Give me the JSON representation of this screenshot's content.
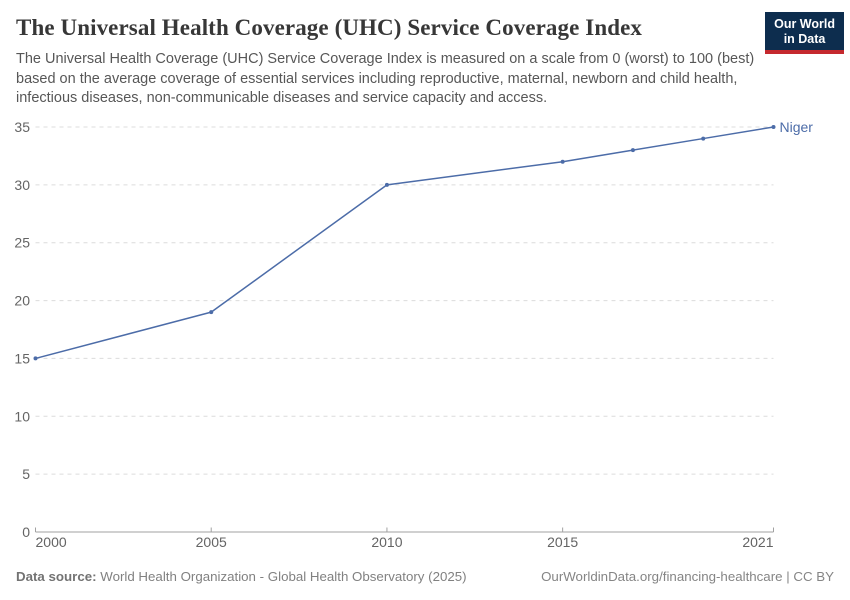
{
  "header": {
    "title": "The Universal Health Coverage (UHC) Service Coverage Index",
    "subtitle": "The Universal Health Coverage (UHC) Service Coverage Index is measured on a scale from 0 (worst) to 100 (best) based on the average coverage of essential services including reproductive, maternal, newborn and child health, infectious diseases, non-communicable diseases and service capacity and access.",
    "logo": {
      "line1": "Our World",
      "line2": "in Data",
      "bg_color": "#0d2d4e",
      "accent_color": "#c5292e"
    }
  },
  "chart_data": {
    "type": "line",
    "title": "The Universal Health Coverage (UHC) Service Coverage Index",
    "x": [
      2000,
      2005,
      2010,
      2015,
      2017,
      2019,
      2021
    ],
    "series": [
      {
        "name": "Niger",
        "values": [
          15,
          19,
          30,
          32,
          33,
          34,
          35
        ],
        "color": "#4C6CA8"
      }
    ],
    "end_label": "Niger",
    "x_ticks": [
      2000,
      2005,
      2010,
      2015,
      2021
    ],
    "y_ticks": [
      0,
      5,
      10,
      15,
      20,
      25,
      30,
      35
    ],
    "xlim": [
      2000,
      2021
    ],
    "ylim": [
      0,
      35
    ],
    "xlabel": "",
    "ylabel": "",
    "grid": "horizontal-dashed",
    "legend_position": "end-of-line-label",
    "axis_text_color": "#646464",
    "grid_color": "#dcdcdc",
    "axis_line_color": "#a1a1a1"
  },
  "footer": {
    "source_label": "Data source:",
    "source_text": " World Health Organization - Global Health Observatory (2025)",
    "citation": "OurWorldinData.org/financing-healthcare | CC BY"
  }
}
